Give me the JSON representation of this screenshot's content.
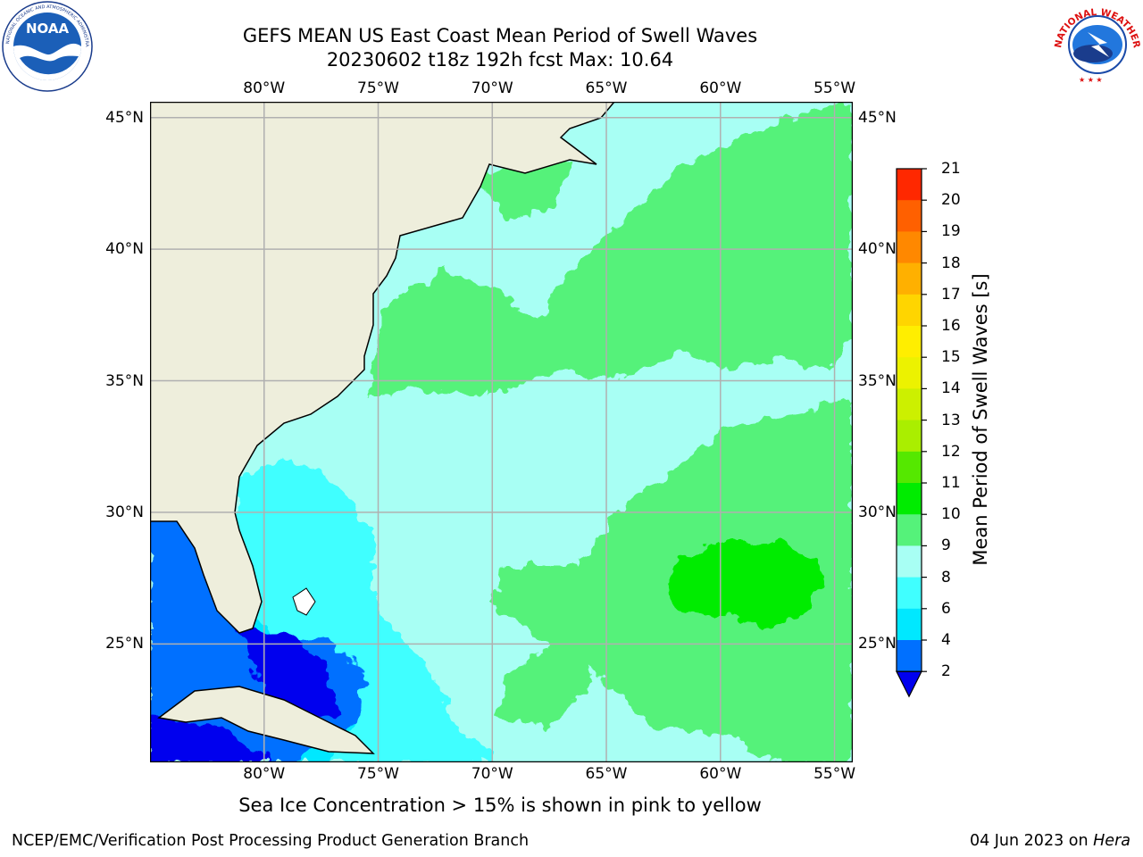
{
  "title": {
    "line1": "GEFS MEAN US East Coast Mean Period of Swell Waves",
    "line2": "20230602 t18z 192h fcst   Max: 10.64"
  },
  "logos": {
    "noaa_text": "NOAA",
    "noaa_ring": "NATIONAL OCEANIC AND ATMOSPHERIC ADMINISTRATION · U.S. DEPARTMENT OF COMMERCE",
    "nws_ring": "NATIONAL WEATHER SERVICE"
  },
  "map": {
    "lon_labels": [
      "80°W",
      "75°W",
      "70°W",
      "65°W",
      "60°W",
      "55°W"
    ],
    "lon_values": [
      -80,
      -75,
      -70,
      -65,
      -60,
      -55
    ],
    "lat_labels": [
      "45°N",
      "40°N",
      "35°N",
      "30°N",
      "25°N"
    ],
    "lat_values": [
      45,
      40,
      35,
      30,
      25
    ],
    "extent": {
      "lon": [
        -85,
        -54.2
      ],
      "lat": [
        20.5,
        45.6
      ]
    },
    "grid": true,
    "colors": {
      "land": "#eeeedc",
      "ocean_default": "#a8fff4",
      "gridline": "#b0b0b0"
    }
  },
  "colorbar": {
    "label": "Mean Period of Swell Waves [s]",
    "ticks": [
      "2",
      "4",
      "6",
      "8",
      "9",
      "10",
      "11",
      "12",
      "13",
      "14",
      "15",
      "16",
      "17",
      "18",
      "19",
      "20",
      "21"
    ],
    "colors": [
      "#0070ff",
      "#00e8ff",
      "#40ffff",
      "#a8fff4",
      "#55f27a",
      "#00ec00",
      "#55e800",
      "#aaee00",
      "#ccf000",
      "#ecf200",
      "#ffee00",
      "#ffd500",
      "#ffb000",
      "#ff8800",
      "#ff6000",
      "#ff2800"
    ],
    "under_color": "#0000ee"
  },
  "footnote": "Sea Ice Concentration > 15% is shown in pink to yellow",
  "credit": "NCEP/EMC/Verification Post Processing Product Generation Branch",
  "date": {
    "text": "04 Jun 2023 on ",
    "host": "Hera"
  }
}
